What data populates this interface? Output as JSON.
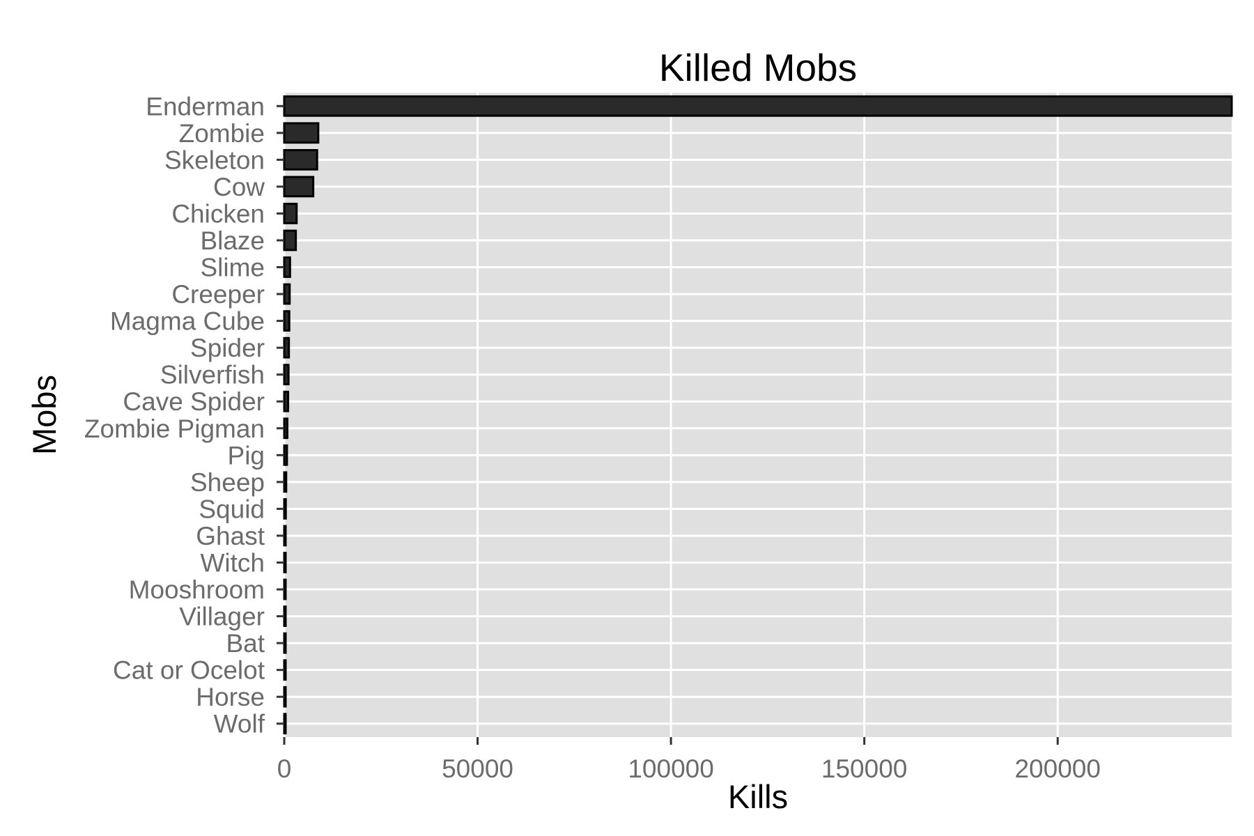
{
  "chart_data": {
    "type": "bar",
    "orientation": "horizontal",
    "title": "Killed Mobs",
    "xlabel": "Kills",
    "ylabel": "Mobs",
    "categories": [
      "Enderman",
      "Zombie",
      "Skeleton",
      "Cow",
      "Chicken",
      "Blaze",
      "Slime",
      "Creeper",
      "Magma Cube",
      "Spider",
      "Silverfish",
      "Cave Spider",
      "Zombie Pigman",
      "Pig",
      "Sheep",
      "Squid",
      "Ghast",
      "Witch",
      "Mooshroom",
      "Villager",
      "Bat",
      "Cat or Ocelot",
      "Horse",
      "Wolf"
    ],
    "values": [
      245000,
      8800,
      8500,
      7500,
      3200,
      3000,
      1500,
      1400,
      1300,
      1200,
      1100,
      1000,
      800,
      700,
      500,
      400,
      350,
      250,
      200,
      150,
      120,
      100,
      80,
      60
    ],
    "xlim": [
      0,
      245000
    ],
    "xticks": [
      "0",
      "50000",
      "100000",
      "150000",
      "200000"
    ],
    "grid": true,
    "legend": "none",
    "colors": {
      "bar_fill": "#2a2a2a",
      "bar_outline": "#000000",
      "panel": "#e0e0e0",
      "grid": "#ffffff",
      "tick_label": "#6b6b6b"
    }
  }
}
